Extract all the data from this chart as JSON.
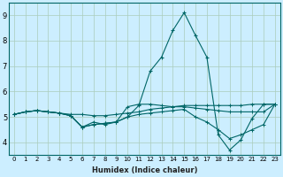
{
  "xlabel": "Humidex (Indice chaleur)",
  "bg_color": "#cceeff",
  "grid_color": "#aaccbb",
  "line_color": "#006666",
  "xlim": [
    -0.5,
    23.5
  ],
  "ylim": [
    3.5,
    9.5
  ],
  "xticks": [
    0,
    1,
    2,
    3,
    4,
    5,
    6,
    7,
    8,
    9,
    10,
    11,
    12,
    13,
    14,
    15,
    16,
    17,
    18,
    19,
    20,
    21,
    22,
    23
  ],
  "yticks": [
    4,
    5,
    6,
    7,
    8,
    9
  ],
  "series": [
    [
      5.1,
      5.2,
      5.25,
      5.2,
      5.15,
      5.1,
      5.1,
      5.05,
      5.05,
      5.1,
      5.15,
      5.2,
      5.3,
      5.35,
      5.4,
      5.45,
      5.45,
      5.45,
      5.45,
      5.45,
      5.45,
      5.5,
      5.5,
      5.5
    ],
    [
      5.1,
      5.2,
      5.25,
      5.2,
      5.15,
      5.05,
      4.6,
      4.8,
      4.7,
      4.8,
      5.4,
      5.5,
      5.5,
      5.45,
      5.4,
      5.4,
      5.35,
      5.3,
      5.25,
      5.2,
      5.2,
      5.2,
      5.2,
      5.5
    ],
    [
      5.1,
      5.2,
      5.25,
      5.2,
      5.15,
      5.05,
      4.6,
      4.7,
      4.75,
      4.8,
      5.0,
      5.1,
      5.15,
      5.2,
      5.25,
      5.3,
      5.0,
      4.8,
      4.5,
      4.15,
      4.3,
      4.5,
      4.7,
      5.5
    ],
    [
      5.1,
      5.2,
      5.25,
      5.2,
      5.15,
      5.05,
      4.6,
      4.7,
      4.75,
      4.8,
      5.0,
      5.45,
      6.8,
      7.35,
      8.4,
      9.1,
      8.2,
      7.35,
      4.3,
      3.7,
      4.1,
      4.95,
      5.5,
      5.5
    ]
  ]
}
